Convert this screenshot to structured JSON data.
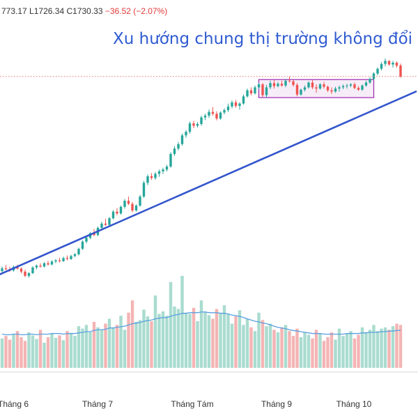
{
  "ohlc_readout": {
    "open_part": "773.17",
    "low_label": "L",
    "low_value": "1726.34",
    "close_label": "C",
    "close_value": "1730.33",
    "change": "−36.52 (−2.07%)"
  },
  "headline": "Xu hướng chung thị trường không đổi",
  "colors": {
    "up": "#26a69a",
    "down": "#ef5350",
    "volume_up": "#a9dccf",
    "volume_down": "#f4b4b4",
    "trendline": "#3355cc",
    "volume_ma": "#5aa0e0",
    "range_box": "#9c27b0",
    "last_price_line": "#e57373",
    "headline": "#2f5bd1"
  },
  "chart_data": {
    "type": "candlestick",
    "x_tick_labels": [
      "Tháng 6",
      "Tháng 7",
      "Tháng Tám",
      "Tháng 9",
      "Tháng 10"
    ],
    "price_range_approx": [
      1060,
      1790
    ],
    "last_close": 1730.33,
    "candles": [
      [
        1082,
        1098,
        1076,
        1091
      ],
      [
        1091,
        1102,
        1085,
        1088
      ],
      [
        1088,
        1096,
        1079,
        1084
      ],
      [
        1084,
        1100,
        1080,
        1096
      ],
      [
        1096,
        1103,
        1087,
        1090
      ],
      [
        1090,
        1094,
        1074,
        1080
      ],
      [
        1080,
        1086,
        1062,
        1066
      ],
      [
        1066,
        1078,
        1060,
        1075
      ],
      [
        1075,
        1098,
        1072,
        1094
      ],
      [
        1094,
        1104,
        1088,
        1100
      ],
      [
        1100,
        1108,
        1093,
        1097
      ],
      [
        1097,
        1112,
        1094,
        1108
      ],
      [
        1108,
        1116,
        1100,
        1104
      ],
      [
        1104,
        1118,
        1101,
        1114
      ],
      [
        1114,
        1122,
        1108,
        1118
      ],
      [
        1118,
        1126,
        1111,
        1115
      ],
      [
        1115,
        1130,
        1112,
        1125
      ],
      [
        1125,
        1134,
        1118,
        1122
      ],
      [
        1122,
        1136,
        1119,
        1132
      ],
      [
        1132,
        1142,
        1128,
        1138
      ],
      [
        1138,
        1160,
        1134,
        1156
      ],
      [
        1156,
        1184,
        1152,
        1180
      ],
      [
        1180,
        1198,
        1174,
        1193
      ],
      [
        1193,
        1212,
        1188,
        1208
      ],
      [
        1208,
        1222,
        1198,
        1202
      ],
      [
        1202,
        1230,
        1198,
        1226
      ],
      [
        1226,
        1246,
        1220,
        1240
      ],
      [
        1240,
        1256,
        1232,
        1236
      ],
      [
        1236,
        1262,
        1232,
        1258
      ],
      [
        1258,
        1285,
        1254,
        1280
      ],
      [
        1280,
        1292,
        1268,
        1274
      ],
      [
        1274,
        1300,
        1270,
        1296
      ],
      [
        1296,
        1322,
        1290,
        1316
      ],
      [
        1316,
        1330,
        1302,
        1306
      ],
      [
        1306,
        1312,
        1278,
        1284
      ],
      [
        1284,
        1304,
        1280,
        1300
      ],
      [
        1300,
        1336,
        1296,
        1330
      ],
      [
        1330,
        1382,
        1326,
        1376
      ],
      [
        1376,
        1404,
        1368,
        1398
      ],
      [
        1398,
        1408,
        1386,
        1392
      ],
      [
        1392,
        1412,
        1386,
        1406
      ],
      [
        1406,
        1420,
        1396,
        1414
      ],
      [
        1414,
        1426,
        1405,
        1420
      ],
      [
        1420,
        1436,
        1414,
        1430
      ],
      [
        1430,
        1478,
        1426,
        1472
      ],
      [
        1472,
        1498,
        1466,
        1490
      ],
      [
        1490,
        1512,
        1484,
        1505
      ],
      [
        1505,
        1540,
        1500,
        1534
      ],
      [
        1534,
        1552,
        1526,
        1546
      ],
      [
        1546,
        1580,
        1540,
        1574
      ],
      [
        1574,
        1582,
        1558,
        1566
      ],
      [
        1566,
        1578,
        1560,
        1572
      ],
      [
        1572,
        1600,
        1566,
        1594
      ],
      [
        1594,
        1606,
        1585,
        1600
      ],
      [
        1600,
        1620,
        1592,
        1612
      ],
      [
        1612,
        1628,
        1600,
        1606
      ],
      [
        1606,
        1614,
        1584,
        1590
      ],
      [
        1590,
        1614,
        1586,
        1610
      ],
      [
        1610,
        1624,
        1604,
        1618
      ],
      [
        1618,
        1640,
        1612,
        1630
      ],
      [
        1630,
        1650,
        1624,
        1644
      ],
      [
        1644,
        1652,
        1626,
        1632
      ],
      [
        1632,
        1644,
        1620,
        1640
      ],
      [
        1640,
        1670,
        1636,
        1664
      ],
      [
        1664,
        1690,
        1660,
        1684
      ],
      [
        1684,
        1694,
        1668,
        1674
      ],
      [
        1674,
        1700,
        1670,
        1694
      ],
      [
        1694,
        1710,
        1688,
        1704
      ],
      [
        1704,
        1708,
        1662,
        1668
      ],
      [
        1668,
        1702,
        1660,
        1694
      ],
      [
        1694,
        1716,
        1688,
        1708
      ],
      [
        1708,
        1718,
        1690,
        1698
      ],
      [
        1698,
        1712,
        1694,
        1706
      ],
      [
        1706,
        1716,
        1696,
        1700
      ],
      [
        1700,
        1722,
        1694,
        1716
      ],
      [
        1716,
        1730,
        1710,
        1714
      ],
      [
        1714,
        1718,
        1696,
        1702
      ],
      [
        1702,
        1708,
        1664,
        1670
      ],
      [
        1670,
        1690,
        1666,
        1686
      ],
      [
        1686,
        1700,
        1680,
        1694
      ],
      [
        1694,
        1714,
        1690,
        1710
      ],
      [
        1710,
        1718,
        1688,
        1694
      ],
      [
        1694,
        1704,
        1676,
        1690
      ],
      [
        1690,
        1708,
        1686,
        1704
      ],
      [
        1704,
        1712,
        1690,
        1696
      ],
      [
        1696,
        1700,
        1678,
        1684
      ],
      [
        1684,
        1694,
        1672,
        1680
      ],
      [
        1680,
        1696,
        1676,
        1690
      ],
      [
        1690,
        1700,
        1680,
        1694
      ],
      [
        1694,
        1704,
        1688,
        1698
      ],
      [
        1698,
        1706,
        1690,
        1700
      ],
      [
        1700,
        1708,
        1694,
        1704
      ],
      [
        1704,
        1710,
        1688,
        1692
      ],
      [
        1692,
        1698,
        1682,
        1686
      ],
      [
        1686,
        1704,
        1682,
        1700
      ],
      [
        1700,
        1716,
        1696,
        1710
      ],
      [
        1710,
        1728,
        1706,
        1722
      ],
      [
        1722,
        1744,
        1718,
        1740
      ],
      [
        1740,
        1760,
        1734,
        1756
      ],
      [
        1756,
        1778,
        1750,
        1772
      ],
      [
        1772,
        1790,
        1764,
        1782
      ],
      [
        1782,
        1784,
        1766,
        1770
      ],
      [
        1770,
        1782,
        1760,
        1776
      ],
      [
        1776,
        1780,
        1760,
        1766
      ],
      [
        1767,
        1773,
        1726,
        1730
      ]
    ],
    "volumes": [
      48,
      52,
      46,
      55,
      60,
      50,
      44,
      58,
      53,
      47,
      62,
      41,
      50,
      56,
      49,
      53,
      45,
      60,
      57,
      52,
      68,
      64,
      70,
      58,
      75,
      66,
      62,
      72,
      80,
      66,
      70,
      85,
      62,
      90,
      110,
      75,
      78,
      95,
      84,
      76,
      118,
      88,
      92,
      85,
      140,
      100,
      96,
      150,
      90,
      88,
      98,
      76,
      110,
      92,
      86,
      80,
      96,
      90,
      102,
      88,
      72,
      84,
      94,
      70,
      80,
      66,
      60,
      90,
      78,
      68,
      72,
      62,
      58,
      66,
      70,
      60,
      52,
      64,
      50,
      58,
      54,
      48,
      62,
      56,
      44,
      50,
      58,
      46,
      64,
      52,
      56,
      60,
      48,
      54,
      66,
      58,
      62,
      70,
      60,
      64,
      66,
      62,
      68,
      72,
      70
    ],
    "volume_ma_values": [
      55,
      54,
      54,
      55,
      55,
      54,
      54,
      55,
      55,
      54,
      55,
      55,
      55,
      56,
      56,
      56,
      55,
      56,
      56,
      56,
      57,
      58,
      59,
      59,
      61,
      62,
      62,
      63,
      65,
      65,
      66,
      67,
      68,
      70,
      72,
      73,
      74,
      76,
      77,
      78,
      80,
      81,
      82,
      82,
      84,
      86,
      87,
      89,
      89,
      90,
      90,
      90,
      91,
      91,
      90,
      90,
      90,
      89,
      89,
      88,
      86,
      85,
      84,
      82,
      80,
      78,
      76,
      75,
      73,
      72,
      70,
      68,
      66,
      65,
      64,
      62,
      61,
      60,
      59,
      58,
      57,
      56,
      56,
      56,
      55,
      55,
      55,
      55,
      55,
      55,
      56,
      56,
      56,
      56,
      57,
      57,
      58,
      58,
      58,
      59,
      59,
      60,
      60,
      61,
      61
    ],
    "trendline": {
      "from_index": -4,
      "from_value": 1052,
      "to_index": 108,
      "to_value": 1680
    },
    "consolidation_box": {
      "from_index": 67,
      "to_index": 97,
      "low_value": 1660,
      "high_value": 1720
    }
  }
}
